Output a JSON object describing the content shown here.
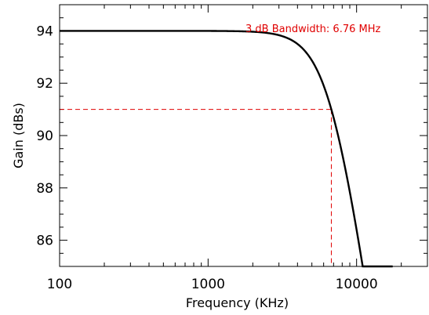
{
  "chart_data": {
    "type": "line",
    "title": "",
    "xlabel": "Frequency (KHz)",
    "ylabel": "Gain (dBs)",
    "xscale": "log",
    "xlim": [
      100,
      30000
    ],
    "ylim": [
      85,
      95
    ],
    "xticks": [
      100,
      1000,
      10000
    ],
    "xtick_labels": [
      "100",
      "1000",
      "10000"
    ],
    "yticks": [
      86,
      88,
      90,
      92,
      94
    ],
    "ytick_labels": [
      "86",
      "88",
      "90",
      "92",
      "94"
    ],
    "grid": false,
    "series": [
      {
        "name": "",
        "color": "#000000",
        "dc_gain_db": 94,
        "cutoff_khz": 6760,
        "order": 2,
        "x_range": [
          100,
          17500
        ]
      }
    ],
    "markers": {
      "cutoff_x": 6760,
      "cutoff_y": 91,
      "color": "#e00000",
      "style": "dashed"
    },
    "annotation": "3 dB Bandwidth: 6.76 MHz"
  }
}
